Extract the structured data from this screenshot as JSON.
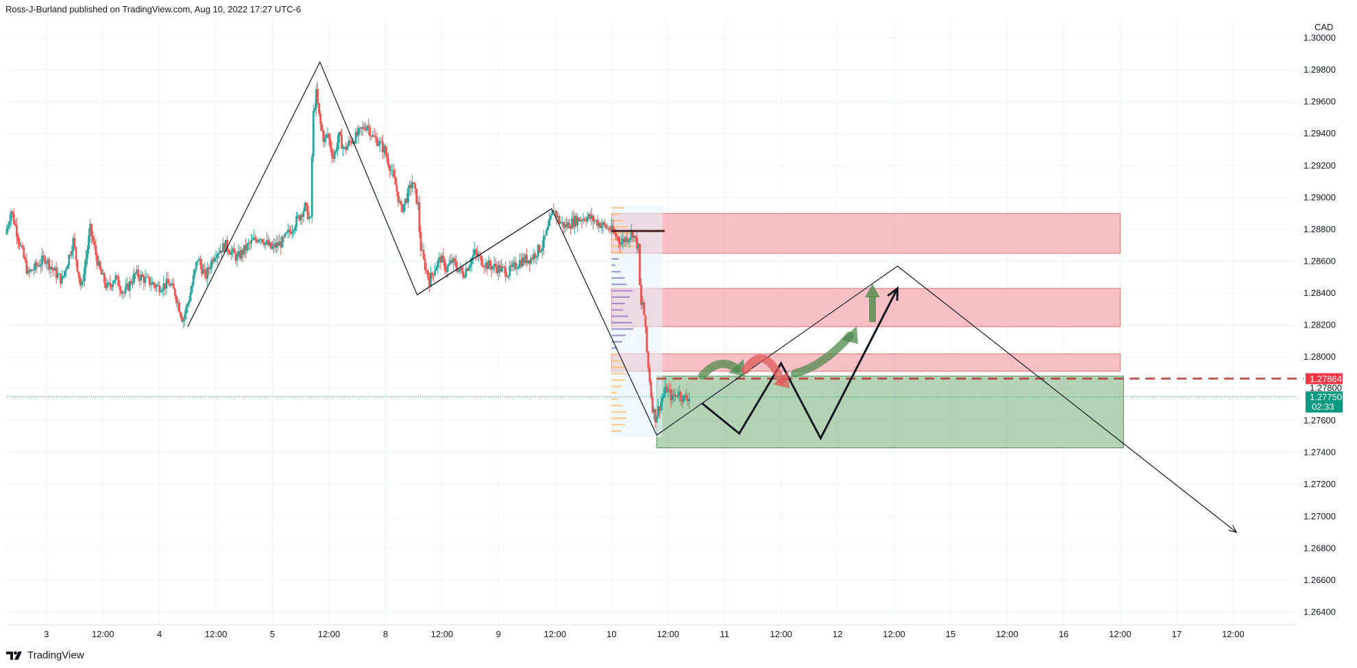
{
  "header": {
    "published_text": "Ross-J-Burland published on TradingView.com, Aug 10, 2022 17:27 UTC-6"
  },
  "footer": {
    "brand": "TradingView"
  },
  "chart_data": {
    "type": "candlestick",
    "currency_label": "CAD",
    "y_ticks": [
      "1.30000",
      "1.29800",
      "1.29600",
      "1.29400",
      "1.29200",
      "1.29000",
      "1.28800",
      "1.28600",
      "1.28400",
      "1.28200",
      "1.28000",
      "1.27800",
      "1.27600",
      "1.27400",
      "1.27200",
      "1.27000",
      "1.26800",
      "1.26600",
      "1.26400"
    ],
    "x_ticks": [
      {
        "label": "3",
        "x": 0.5
      },
      {
        "label": "12:00",
        "x": 1.0
      },
      {
        "label": "4",
        "x": 1.5
      },
      {
        "label": "12:00",
        "x": 2.0
      },
      {
        "label": "5",
        "x": 2.5
      },
      {
        "label": "12:00",
        "x": 3.0
      },
      {
        "label": "8",
        "x": 3.5
      },
      {
        "label": "12:00",
        "x": 4.0
      },
      {
        "label": "9",
        "x": 4.5
      },
      {
        "label": "12:00",
        "x": 5.0
      },
      {
        "label": "10",
        "x": 5.5
      },
      {
        "label": "12:00",
        "x": 6.0
      },
      {
        "label": "11",
        "x": 6.5
      },
      {
        "label": "12:00",
        "x": 7.0
      },
      {
        "label": "12",
        "x": 7.5
      },
      {
        "label": "12:00",
        "x": 8.0
      },
      {
        "label": "15",
        "x": 8.5
      },
      {
        "label": "12:00",
        "x": 9.0
      },
      {
        "label": "16",
        "x": 9.5
      },
      {
        "label": "12:00",
        "x": 10.0
      },
      {
        "label": "17",
        "x": 10.5
      },
      {
        "label": "12:00",
        "x": 11.0
      }
    ],
    "x_range": [
      0.15,
      11.55
    ],
    "y_range": [
      1.2632,
      1.3011
    ],
    "price_path": [
      [
        0.15,
        1.2877
      ],
      [
        0.2,
        1.2892
      ],
      [
        0.35,
        1.2852
      ],
      [
        0.5,
        1.2862
      ],
      [
        0.6,
        1.2852
      ],
      [
        0.65,
        1.2848
      ],
      [
        0.7,
        1.286
      ],
      [
        0.75,
        1.2873
      ],
      [
        0.82,
        1.2842
      ],
      [
        0.9,
        1.288
      ],
      [
        0.98,
        1.2855
      ],
      [
        1.05,
        1.2843
      ],
      [
        1.12,
        1.285
      ],
      [
        1.2,
        1.284
      ],
      [
        1.3,
        1.2852
      ],
      [
        1.4,
        1.2848
      ],
      [
        1.5,
        1.2844
      ],
      [
        1.6,
        1.2846
      ],
      [
        1.65,
        1.284
      ],
      [
        1.72,
        1.2823
      ],
      [
        1.78,
        1.2838
      ],
      [
        1.85,
        1.2862
      ],
      [
        1.92,
        1.285
      ],
      [
        2.0,
        1.2865
      ],
      [
        2.1,
        1.287
      ],
      [
        2.2,
        1.2862
      ],
      [
        2.3,
        1.287
      ],
      [
        2.4,
        1.2876
      ],
      [
        2.5,
        1.2868
      ],
      [
        2.6,
        1.2872
      ],
      [
        2.72,
        1.2885
      ],
      [
        2.8,
        1.2894
      ],
      [
        2.85,
        1.2885
      ],
      [
        2.87,
        1.295
      ],
      [
        2.9,
        1.2965
      ],
      [
        2.93,
        1.2948
      ],
      [
        2.97,
        1.2935
      ],
      [
        3.0,
        1.294
      ],
      [
        3.05,
        1.2925
      ],
      [
        3.1,
        1.2938
      ],
      [
        3.15,
        1.293
      ],
      [
        3.2,
        1.2935
      ],
      [
        3.25,
        1.2938
      ],
      [
        3.3,
        1.2942
      ],
      [
        3.35,
        1.2946
      ],
      [
        3.4,
        1.2938
      ],
      [
        3.45,
        1.2935
      ],
      [
        3.5,
        1.293
      ],
      [
        3.55,
        1.292
      ],
      [
        3.6,
        1.2908
      ],
      [
        3.65,
        1.2892
      ],
      [
        3.7,
        1.29
      ],
      [
        3.75,
        1.291
      ],
      [
        3.8,
        1.2895
      ],
      [
        3.82,
        1.287
      ],
      [
        3.85,
        1.286
      ],
      [
        3.9,
        1.2848
      ],
      [
        3.95,
        1.2856
      ],
      [
        4.0,
        1.2862
      ],
      [
        4.05,
        1.2855
      ],
      [
        4.1,
        1.286
      ],
      [
        4.2,
        1.2852
      ],
      [
        4.3,
        1.2865
      ],
      [
        4.4,
        1.2858
      ],
      [
        4.5,
        1.2856
      ],
      [
        4.6,
        1.2853
      ],
      [
        4.7,
        1.286
      ],
      [
        4.8,
        1.2862
      ],
      [
        4.9,
        1.287
      ],
      [
        4.95,
        1.288
      ],
      [
        5.0,
        1.2893
      ],
      [
        5.05,
        1.2885
      ],
      [
        5.1,
        1.2882
      ],
      [
        5.2,
        1.2886
      ],
      [
        5.3,
        1.2888
      ],
      [
        5.4,
        1.2884
      ],
      [
        5.5,
        1.288
      ],
      [
        5.6,
        1.2872
      ],
      [
        5.7,
        1.2878
      ],
      [
        5.75,
        1.2868
      ],
      [
        5.77,
        1.283
      ],
      [
        5.79,
        1.2835
      ],
      [
        5.81,
        1.2818
      ],
      [
        5.83,
        1.2798
      ],
      [
        5.85,
        1.2786
      ],
      [
        5.87,
        1.277
      ],
      [
        5.9,
        1.2762
      ],
      [
        5.93,
        1.2768
      ],
      [
        5.97,
        1.2776
      ],
      [
        6.0,
        1.278
      ],
      [
        6.05,
        1.2774
      ],
      [
        6.1,
        1.2778
      ],
      [
        6.15,
        1.2774
      ],
      [
        6.2,
        1.2775
      ]
    ],
    "current_price": "1.27750",
    "current_price_countdown": "02:33",
    "level_price": "1.27864",
    "hidden_tick_label": "1.27800",
    "zones": [
      {
        "kind": "supply",
        "x0": 5.5,
        "x1": 10.0,
        "y0": 1.2865,
        "y1": 1.289
      },
      {
        "kind": "supply",
        "x0": 5.5,
        "x1": 10.0,
        "y0": 1.2819,
        "y1": 1.2843
      },
      {
        "kind": "supply",
        "x0": 5.5,
        "x1": 10.0,
        "y0": 1.2791,
        "y1": 1.2802
      },
      {
        "kind": "demand",
        "x0": 5.9,
        "x1": 10.03,
        "y0": 1.2743,
        "y1": 1.2788
      }
    ],
    "trend_lines": [
      {
        "points": [
          [
            1.75,
            1.2819
          ],
          [
            2.92,
            1.2985
          ],
          [
            3.78,
            1.2839
          ],
          [
            4.97,
            1.2893
          ],
          [
            5.9,
            1.2751
          ],
          [
            8.03,
            1.2857
          ],
          [
            11.03,
            1.269
          ]
        ],
        "arrow": true
      },
      {
        "points": [
          [
            3.78,
            1.2839
          ],
          [
            4.97,
            1.2893
          ]
        ],
        "arrow": false
      }
    ],
    "projection_path": [
      [
        6.3,
        1.2771
      ],
      [
        6.63,
        1.2752
      ],
      [
        7.0,
        1.2796
      ],
      [
        7.35,
        1.2749
      ],
      [
        8.03,
        1.2843
      ]
    ],
    "colors": {
      "up": "#26a69a",
      "down": "#ef5350",
      "supply": "#f28b96",
      "demand": "#6aa56a",
      "level": "#f23645",
      "price_tag": "#089981"
    }
  }
}
